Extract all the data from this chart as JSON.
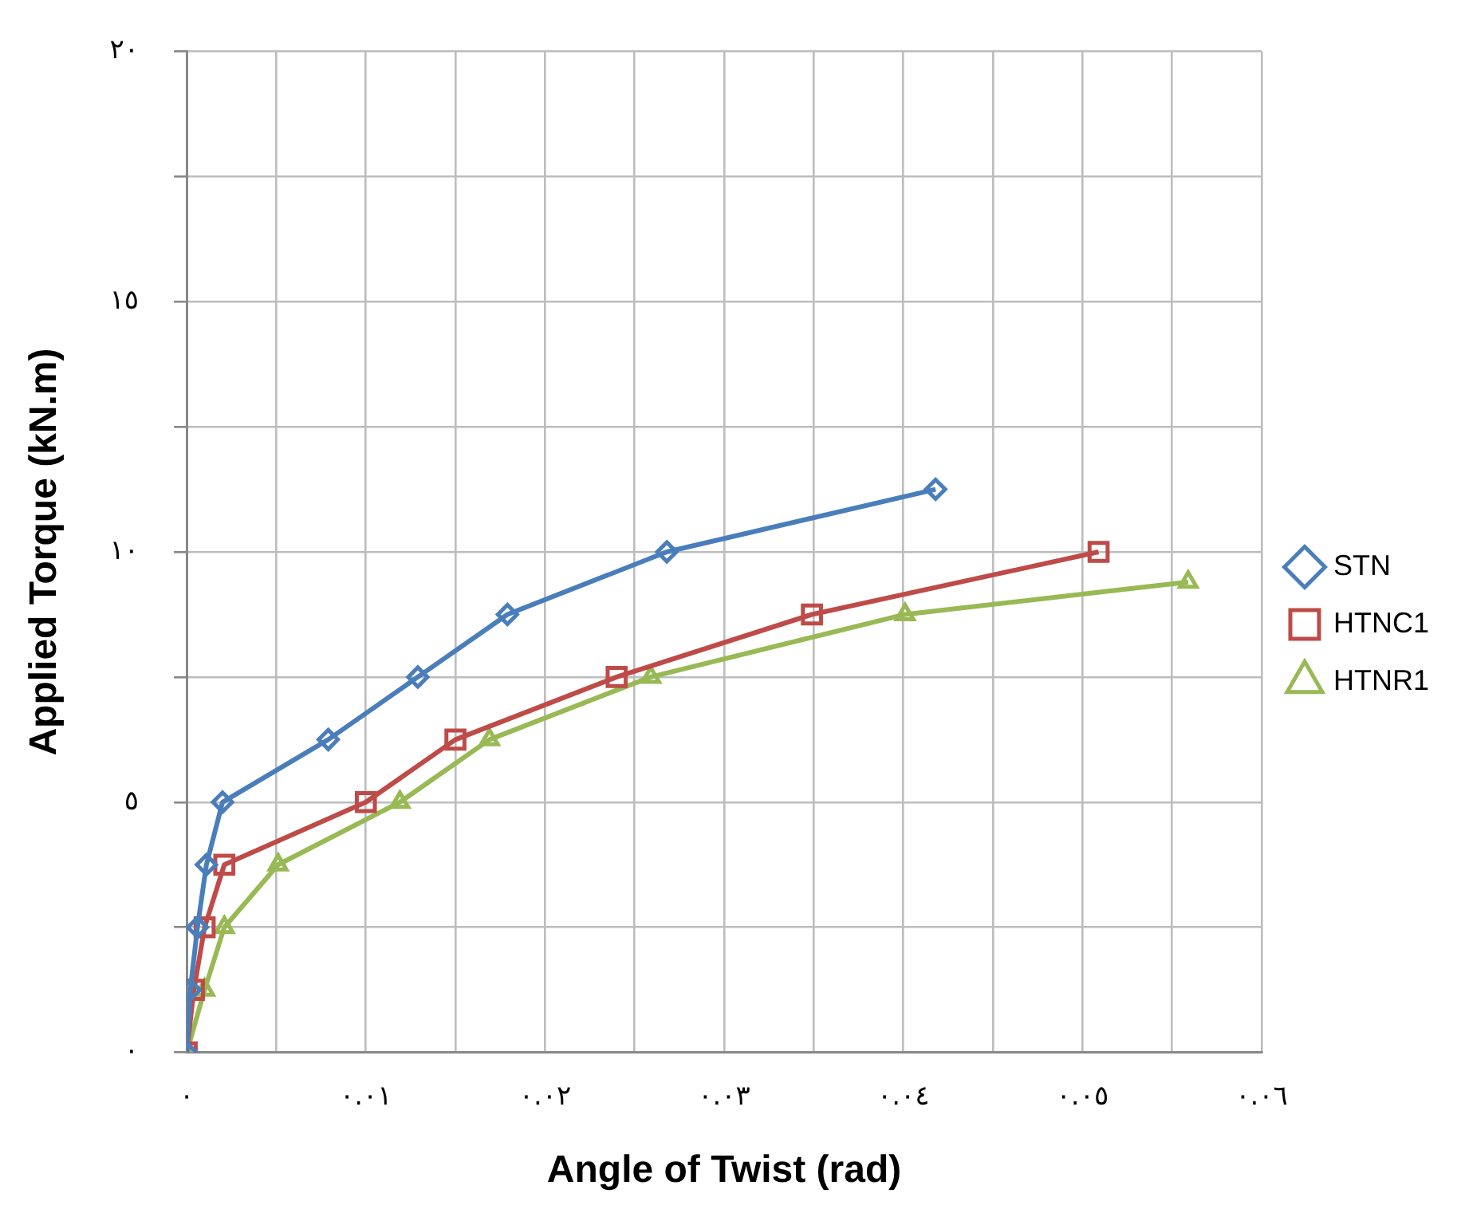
{
  "chart_data": {
    "type": "line",
    "xlabel": "Angle of Twist (rad)",
    "ylabel": "Applied Torque (kN.m)",
    "xlim": [
      0,
      0.06
    ],
    "ylim": [
      0,
      20
    ],
    "xticks": [
      {
        "value": 0,
        "label": "٠"
      },
      {
        "value": 0.005,
        "label": null
      },
      {
        "value": 0.01,
        "label": "٠.٠١"
      },
      {
        "value": 0.015,
        "label": null
      },
      {
        "value": 0.02,
        "label": "٠.٠٢"
      },
      {
        "value": 0.025,
        "label": null
      },
      {
        "value": 0.03,
        "label": "٠.٠٣"
      },
      {
        "value": 0.035,
        "label": null
      },
      {
        "value": 0.04,
        "label": "٠.٠٤"
      },
      {
        "value": 0.045,
        "label": null
      },
      {
        "value": 0.05,
        "label": "٠.٠٥"
      },
      {
        "value": 0.055,
        "label": null
      },
      {
        "value": 0.06,
        "label": "٠.٠٦"
      }
    ],
    "yticks": [
      {
        "value": 0,
        "label": "٠"
      },
      {
        "value": 2.5,
        "label": null
      },
      {
        "value": 5,
        "label": "٥"
      },
      {
        "value": 7.5,
        "label": null
      },
      {
        "value": 10,
        "label": "١٠"
      },
      {
        "value": 12.5,
        "label": null
      },
      {
        "value": 15,
        "label": "١٥"
      },
      {
        "value": 17.5,
        "label": null
      },
      {
        "value": 20,
        "label": "٢٠"
      }
    ],
    "grid": true,
    "legend": "right",
    "line_style": "solid",
    "series": [
      {
        "name": "STN",
        "color": "#4a7ebb",
        "marker": "diamond",
        "x": [
          0,
          0.0002,
          0.0006,
          0.0011,
          0.002,
          0.0079,
          0.0129,
          0.0179,
          0.0268,
          0.0418
        ],
        "values": [
          0,
          1.25,
          2.5,
          3.75,
          5,
          6.25,
          7.5,
          8.75,
          10,
          11.25
        ]
      },
      {
        "name": "HTNC1",
        "color": "#be4b48",
        "marker": "square",
        "x": [
          0,
          0.0004,
          0.001,
          0.0021,
          0.01,
          0.015,
          0.024,
          0.0349,
          0.0509
        ],
        "values": [
          0,
          1.25,
          2.5,
          3.75,
          5,
          6.25,
          7.5,
          8.75,
          10
        ]
      },
      {
        "name": "HTNR1",
        "color": "#98b954",
        "marker": "triangle",
        "x": [
          0,
          0.001,
          0.0021,
          0.0051,
          0.0119,
          0.0169,
          0.0259,
          0.0401,
          0.0559
        ],
        "values": [
          0,
          1.25,
          2.5,
          3.75,
          5,
          6.25,
          7.5,
          8.75,
          9.4
        ]
      }
    ]
  }
}
